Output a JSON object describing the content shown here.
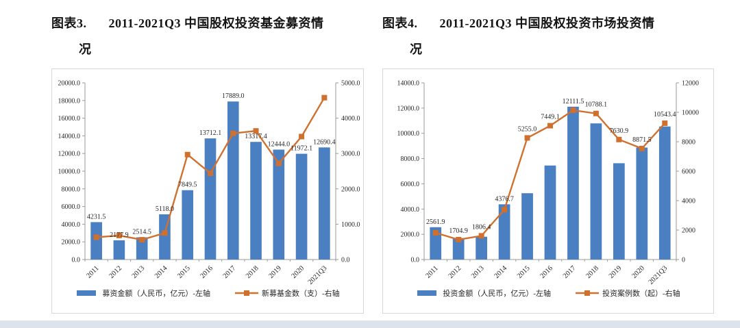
{
  "page": {
    "background": "#ffffff",
    "bottom_strip_color": "#dde3ea"
  },
  "colors": {
    "bar": "#4a7fc1",
    "line": "#d0702f",
    "axis_line": "#9a9a9a",
    "text": "#262626"
  },
  "figures": [
    {
      "label": "图表3.",
      "title_line1": "2011-2021Q3 中国股权投资基金募资情",
      "title_line2": "况"
    },
    {
      "label": "图表4.",
      "title_line1": "2011-2021Q3 中国股权投资市场投资情",
      "title_line2": "况"
    }
  ],
  "chart_data": [
    {
      "type": "bar",
      "title": "图表3. 2011-2021Q3 中国股权投资基金募资情况",
      "categories": [
        "2011",
        "2012",
        "2013",
        "2014",
        "2015",
        "2016",
        "2017",
        "2018",
        "2019",
        "2020",
        "2021Q3"
      ],
      "series": [
        {
          "name": "募资金额（人民币，亿元）-左轴",
          "type": "bar",
          "axis": "left",
          "color": "#4a7fc1",
          "values": [
            4231.5,
            2177.9,
            2514.5,
            5118.0,
            7849.5,
            13712.1,
            17889.0,
            13317.4,
            12444.0,
            11972.1,
            12690.4
          ],
          "labels": [
            "4231.5",
            "2177.9",
            "2514.5",
            "5118.0",
            "7849.5",
            "13712.1",
            "17889.0",
            "13317.4",
            "12444.0",
            "11972.1",
            "12690.4"
          ]
        },
        {
          "name": "新募基金数（支）-右轴",
          "type": "line",
          "axis": "right",
          "color": "#d0702f",
          "estimated": true,
          "values": [
            630,
            680,
            560,
            750,
            2970,
            2440,
            3570,
            3640,
            2720,
            3480,
            4580
          ]
        }
      ],
      "left_axis": {
        "min": 0,
        "max": 20000,
        "tick_labels": [
          "0.0",
          "2000.0",
          "4000.0",
          "6000.0",
          "8000.0",
          "10000.0",
          "12000.0",
          "14000.0",
          "16000.0",
          "18000.0",
          "20000.0"
        ]
      },
      "right_axis": {
        "min": 0,
        "max": 5000,
        "tick_labels": [
          "0.0",
          "1000.0",
          "2000.0",
          "3000.0",
          "4000.0",
          "5000.0"
        ]
      },
      "label_placement": "bar",
      "grid": false,
      "legend_position": "bottom"
    },
    {
      "type": "bar",
      "title": "图表4. 2011-2021Q3 中国股权投资市场投资情况",
      "categories": [
        "2011",
        "2012",
        "2013",
        "2014",
        "2015",
        "2016",
        "2017",
        "2018",
        "2019",
        "2020",
        "2021Q3"
      ],
      "series": [
        {
          "name": "投资金额（人民币，亿元）-左轴",
          "type": "bar",
          "axis": "left",
          "color": "#4a7fc1",
          "values": [
            2561.9,
            1704.9,
            1806.4,
            4376.7,
            5255.0,
            7449.1,
            12111.5,
            10788.1,
            7630.9,
            8871.5,
            10543.4
          ],
          "labels": [
            "2561.9",
            "1704.9",
            "1806.4",
            "4376.7",
            "5255.0",
            "7449.1",
            "12111.5",
            "10788.1",
            "7630.9",
            "8871.5",
            "10543.4"
          ]
        },
        {
          "name": "投资案例数（起）-右轴",
          "type": "line",
          "axis": "right",
          "color": "#d0702f",
          "estimated": true,
          "values": [
            1820,
            1350,
            1610,
            3380,
            8260,
            9090,
            10140,
            9920,
            8150,
            7540,
            9260
          ]
        }
      ],
      "left_axis": {
        "min": 0,
        "max": 14000,
        "tick_labels": [
          "0.0",
          "2000.0",
          "4000.0",
          "6000.0",
          "8000.0",
          "10000.0",
          "12000.0",
          "14000.0"
        ]
      },
      "right_axis": {
        "min": 0,
        "max": 12000,
        "tick_labels": [
          "0",
          "2000",
          "4000",
          "6000",
          "8000",
          "10000",
          "12000"
        ]
      },
      "label_placement": "max",
      "grid": false,
      "legend_position": "bottom"
    }
  ]
}
